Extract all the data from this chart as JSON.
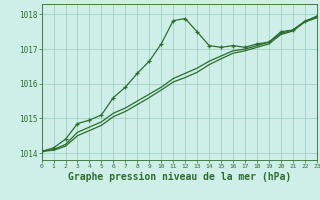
{
  "background_color": "#ceeee8",
  "grid_color": "#99ccbb",
  "line_color": "#2d6e2d",
  "xlabel": "Graphe pression niveau de la mer (hPa)",
  "xlabel_fontsize": 7,
  "xlim": [
    0,
    23
  ],
  "ylim": [
    1013.8,
    1018.3
  ],
  "yticks": [
    1014,
    1015,
    1016,
    1017,
    1018
  ],
  "xticks": [
    0,
    1,
    2,
    3,
    4,
    5,
    6,
    7,
    8,
    9,
    10,
    11,
    12,
    13,
    14,
    15,
    16,
    17,
    18,
    19,
    20,
    21,
    22,
    23
  ],
  "line1_x": [
    0,
    1,
    2,
    3,
    4,
    5,
    6,
    7,
    8,
    9,
    10,
    11,
    12,
    13,
    14,
    15,
    16,
    17,
    18,
    19,
    20,
    21,
    22,
    23
  ],
  "line1_y": [
    1014.05,
    1014.15,
    1014.4,
    1014.85,
    1014.95,
    1015.1,
    1015.6,
    1015.9,
    1016.3,
    1016.65,
    1017.15,
    1017.82,
    1017.88,
    1017.5,
    1017.1,
    1017.05,
    1017.1,
    1017.05,
    1017.15,
    1017.2,
    1017.5,
    1017.55,
    1017.8,
    1017.95
  ],
  "line2_x": [
    0,
    1,
    2,
    3,
    4,
    5,
    6,
    7,
    8,
    9,
    10,
    11,
    12,
    13,
    14,
    15,
    16,
    17,
    18,
    19,
    20,
    21,
    22,
    23
  ],
  "line2_y": [
    1014.05,
    1014.1,
    1014.25,
    1014.6,
    1014.75,
    1014.9,
    1015.15,
    1015.3,
    1015.5,
    1015.7,
    1015.9,
    1016.15,
    1016.3,
    1016.45,
    1016.65,
    1016.8,
    1016.95,
    1017.0,
    1017.1,
    1017.2,
    1017.45,
    1017.55,
    1017.8,
    1017.93
  ],
  "line3_x": [
    0,
    1,
    2,
    3,
    4,
    5,
    6,
    7,
    8,
    9,
    10,
    11,
    12,
    13,
    14,
    15,
    16,
    17,
    18,
    19,
    20,
    21,
    22,
    23
  ],
  "line3_y": [
    1014.05,
    1014.08,
    1014.2,
    1014.5,
    1014.65,
    1014.8,
    1015.05,
    1015.2,
    1015.4,
    1015.6,
    1015.82,
    1016.05,
    1016.18,
    1016.33,
    1016.55,
    1016.72,
    1016.88,
    1016.95,
    1017.05,
    1017.15,
    1017.42,
    1017.52,
    1017.78,
    1017.9
  ]
}
